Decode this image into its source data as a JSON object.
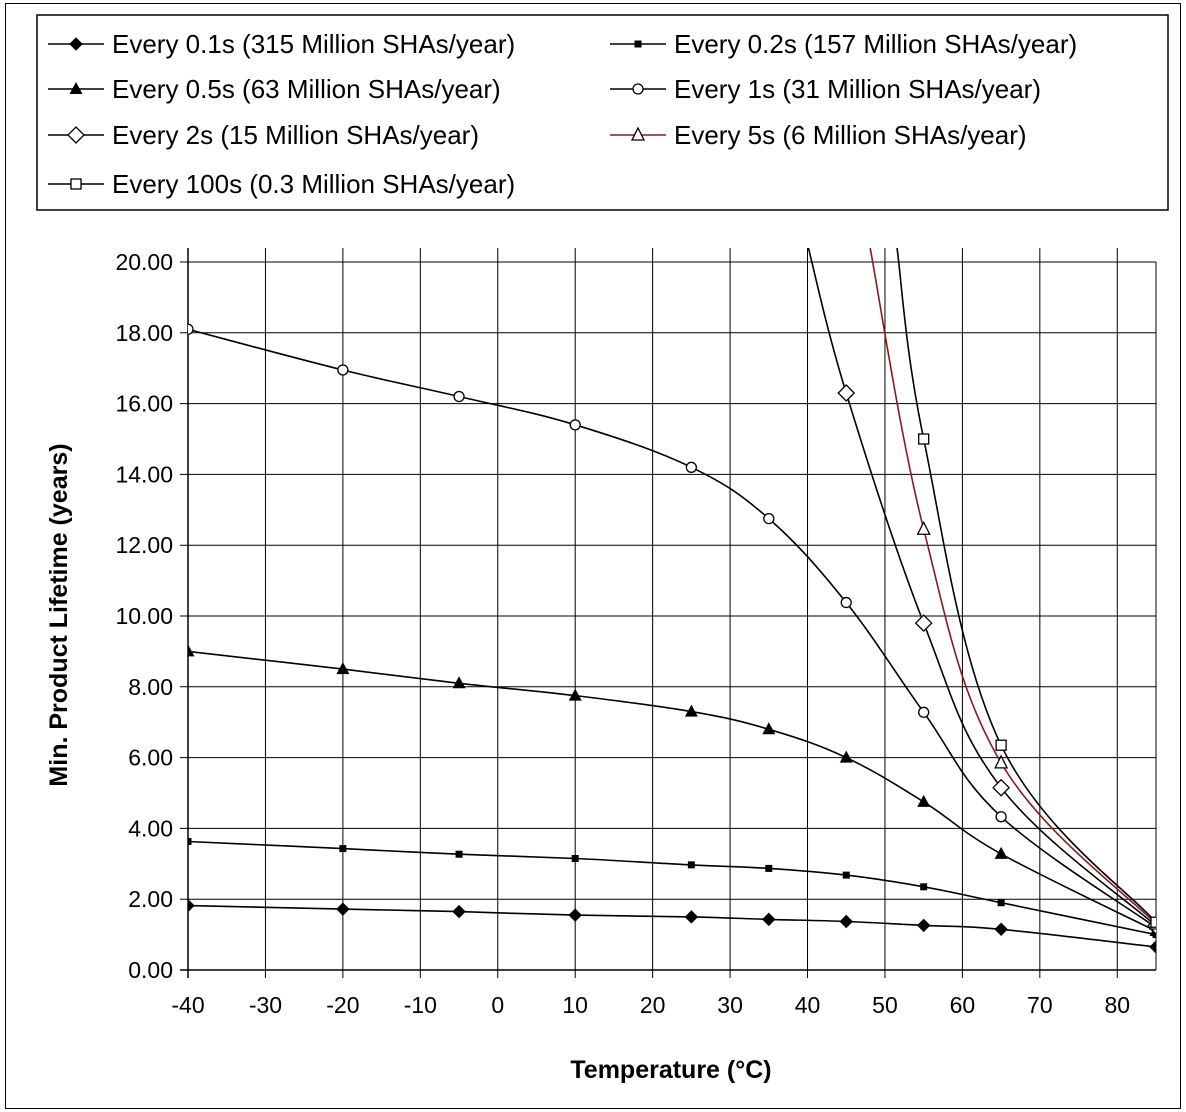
{
  "chart_data": {
    "type": "line",
    "title": "",
    "xlabel": "Temperature (°C)",
    "ylabel": "Min. Product Lifetime (years)",
    "xlim": [
      -40,
      85
    ],
    "ylim": [
      0,
      20
    ],
    "x_ticks": [
      "-40",
      "-30",
      "-20",
      "-10",
      "0",
      "10",
      "20",
      "30",
      "40",
      "50",
      "60",
      "70",
      "80"
    ],
    "y_ticks": [
      "0.00",
      "2.00",
      "4.00",
      "6.00",
      "8.00",
      "10.00",
      "12.00",
      "14.00",
      "16.00",
      "18.00",
      "20.00"
    ],
    "grid": true,
    "legend_position": "top",
    "series": [
      {
        "name": "Every 0.1s (315 Million SHAs/year)",
        "marker": "filled-diamond",
        "color": "#000000",
        "points": [
          [
            -40,
            1.82
          ],
          [
            -20,
            1.72
          ],
          [
            -5,
            1.65
          ],
          [
            10,
            1.55
          ],
          [
            25,
            1.5
          ],
          [
            35,
            1.43
          ],
          [
            45,
            1.37
          ],
          [
            55,
            1.26
          ],
          [
            65,
            1.15
          ],
          [
            85,
            0.65
          ]
        ]
      },
      {
        "name": "Every 0.2s (157 Million SHAs/year)",
        "marker": "filled-square",
        "color": "#000000",
        "points": [
          [
            -40,
            3.63
          ],
          [
            -20,
            3.43
          ],
          [
            -5,
            3.27
          ],
          [
            10,
            3.15
          ],
          [
            25,
            2.97
          ],
          [
            35,
            2.87
          ],
          [
            45,
            2.68
          ],
          [
            55,
            2.35
          ],
          [
            65,
            1.9
          ],
          [
            85,
            1.0
          ]
        ]
      },
      {
        "name": "Every 0.5s (63 Million SHAs/year)",
        "marker": "filled-triangle",
        "color": "#000000",
        "points": [
          [
            -40,
            9.0
          ],
          [
            -20,
            8.5
          ],
          [
            -5,
            8.1
          ],
          [
            10,
            7.75
          ],
          [
            25,
            7.3
          ],
          [
            35,
            6.8
          ],
          [
            45,
            6.0
          ],
          [
            55,
            4.75
          ],
          [
            65,
            3.28
          ],
          [
            85,
            1.1
          ]
        ]
      },
      {
        "name": "Every 1s (31 Million SHAs/year)",
        "marker": "open-circle",
        "color": "#000000",
        "points": [
          [
            -40,
            18.1
          ],
          [
            -20,
            16.95
          ],
          [
            -5,
            16.2
          ],
          [
            10,
            15.4
          ],
          [
            25,
            14.2
          ],
          [
            35,
            12.75
          ],
          [
            45,
            10.38
          ],
          [
            55,
            7.28
          ],
          [
            65,
            4.33
          ],
          [
            85,
            1.2
          ]
        ]
      },
      {
        "name": "Every 2s (15 Million SHAs/year)",
        "marker": "open-diamond",
        "color": "#000000",
        "points": [
          [
            40,
            20.5
          ],
          [
            45,
            16.3
          ],
          [
            55,
            9.8
          ],
          [
            65,
            5.15
          ],
          [
            85,
            1.25
          ]
        ]
      },
      {
        "name": "Every 5s (6 Million SHAs/year)",
        "marker": "open-triangle",
        "color": "#8b1a1a",
        "points": [
          [
            48,
            20.5
          ],
          [
            55,
            12.45
          ],
          [
            65,
            5.85
          ],
          [
            85,
            1.3
          ]
        ]
      },
      {
        "name": "Every 100s (0.3 Million SHAs/year)",
        "marker": "open-square",
        "color": "#000000",
        "points": [
          [
            51.5,
            20.5
          ],
          [
            55,
            15.0
          ],
          [
            65,
            6.35
          ],
          [
            85,
            1.35
          ]
        ]
      }
    ]
  }
}
